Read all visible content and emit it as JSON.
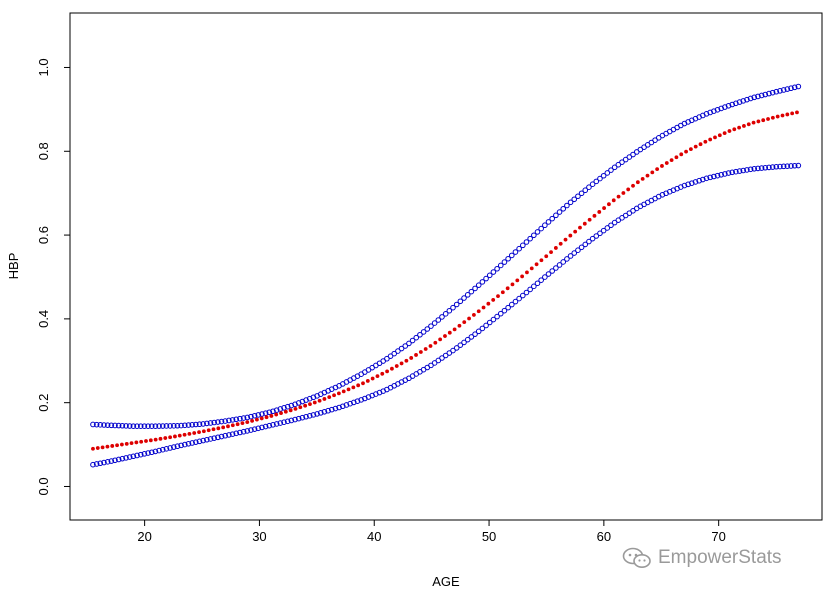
{
  "chart_data": {
    "type": "scatter",
    "title": "",
    "xlabel": "AGE",
    "ylabel": "HBP",
    "xlim": [
      13.5,
      79
    ],
    "ylim": [
      -0.08,
      1.13
    ],
    "x_ticks": [
      20,
      30,
      40,
      50,
      60,
      70
    ],
    "y_ticks": [
      0.0,
      0.2,
      0.4,
      0.6,
      0.8,
      1.0
    ],
    "x_tick_labels": [
      "20",
      "30",
      "40",
      "50",
      "60",
      "70"
    ],
    "y_tick_labels": [
      "0.0",
      "0.2",
      "0.4",
      "0.6",
      "0.8",
      "1.0"
    ],
    "grid": false,
    "legend": "none",
    "x": [
      15.5,
      17,
      19,
      21,
      23,
      25,
      27,
      29,
      31,
      33,
      35,
      37,
      39,
      41,
      43,
      45,
      47,
      49,
      51,
      53,
      55,
      57,
      59,
      61,
      63,
      65,
      67,
      69,
      71,
      73,
      75,
      77
    ],
    "series": [
      {
        "color": "#0000cc",
        "marker": "open-circle",
        "values": [
          0.148,
          0.146,
          0.144,
          0.144,
          0.145,
          0.149,
          0.156,
          0.165,
          0.178,
          0.195,
          0.216,
          0.241,
          0.27,
          0.303,
          0.341,
          0.384,
          0.43,
          0.478,
          0.527,
          0.577,
          0.627,
          0.676,
          0.721,
          0.763,
          0.801,
          0.836,
          0.866,
          0.89,
          0.91,
          0.928,
          0.942,
          0.955
        ]
      },
      {
        "color": "#dd0000",
        "marker": "filled-dot",
        "values": [
          0.09,
          0.096,
          0.104,
          0.112,
          0.121,
          0.131,
          0.142,
          0.154,
          0.168,
          0.184,
          0.202,
          0.223,
          0.246,
          0.273,
          0.303,
          0.337,
          0.375,
          0.416,
          0.459,
          0.504,
          0.55,
          0.597,
          0.642,
          0.686,
          0.727,
          0.764,
          0.797,
          0.825,
          0.849,
          0.868,
          0.882,
          0.894
        ]
      },
      {
        "color": "#0000cc",
        "marker": "open-circle",
        "values": [
          0.052,
          0.06,
          0.072,
          0.084,
          0.097,
          0.109,
          0.121,
          0.133,
          0.146,
          0.159,
          0.173,
          0.189,
          0.208,
          0.23,
          0.258,
          0.29,
          0.327,
          0.368,
          0.412,
          0.457,
          0.503,
          0.548,
          0.591,
          0.631,
          0.666,
          0.695,
          0.718,
          0.736,
          0.749,
          0.758,
          0.763,
          0.766
        ]
      }
    ]
  },
  "watermark": {
    "text": "EmpowerStats",
    "icon": "wechat-icon"
  }
}
